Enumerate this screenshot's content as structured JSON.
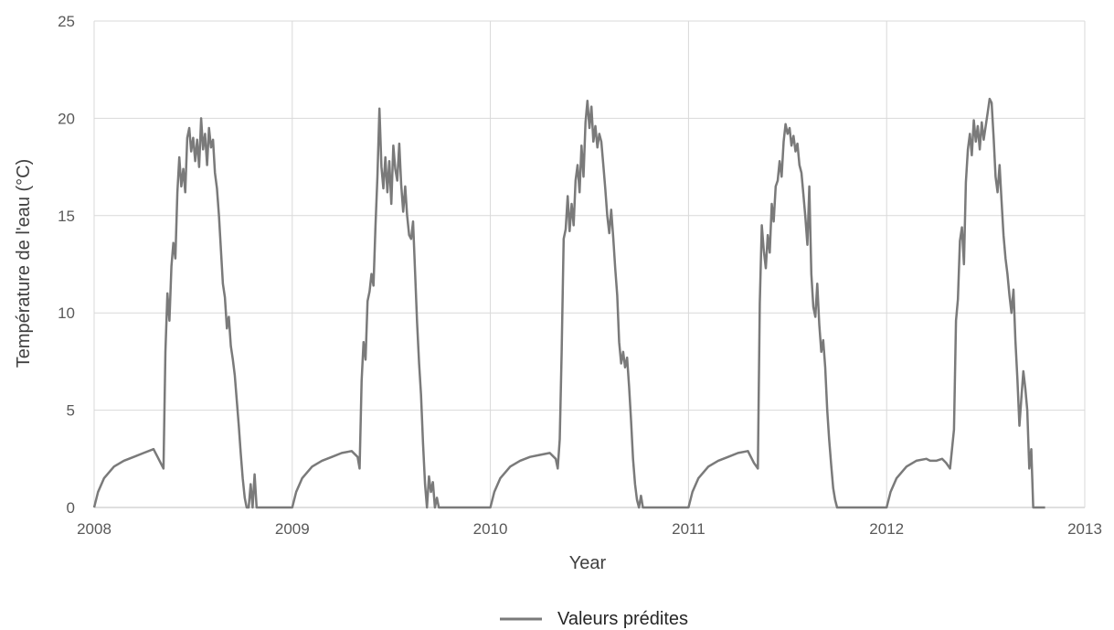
{
  "chart_data": {
    "type": "line",
    "title": "",
    "xlabel": "Year",
    "ylabel": "Température de l'eau (°C)",
    "xlim": [
      2008,
      2013
    ],
    "ylim": [
      0,
      25
    ],
    "x_ticks": [
      "2008",
      "2009",
      "2010",
      "2011",
      "2012",
      "2013"
    ],
    "y_ticks": [
      "0",
      "5",
      "10",
      "15",
      "20",
      "25"
    ],
    "grid": true,
    "legend_position": "bottom-center",
    "line_color": "#7a7a7a",
    "grid_color": "#d9d9d9",
    "series": [
      {
        "name": "Valeurs prédites",
        "x": [
          2008.0,
          2008.02,
          2008.05,
          2008.1,
          2008.15,
          2008.2,
          2008.25,
          2008.3,
          2008.32,
          2008.35,
          2008.36,
          2008.37,
          2008.38,
          2008.39,
          2008.4,
          2008.41,
          2008.42,
          2008.43,
          2008.44,
          2008.45,
          2008.46,
          2008.47,
          2008.48,
          2008.49,
          2008.5,
          2008.51,
          2008.52,
          2008.53,
          2008.54,
          2008.55,
          2008.56,
          2008.57,
          2008.58,
          2008.59,
          2008.6,
          2008.61,
          2008.62,
          2008.63,
          2008.64,
          2008.65,
          2008.66,
          2008.67,
          2008.68,
          2008.69,
          2008.7,
          2008.71,
          2008.72,
          2008.73,
          2008.74,
          2008.75,
          2008.76,
          2008.77,
          2008.78,
          2008.79,
          2008.8,
          2008.81,
          2008.82,
          2008.83,
          2008.84,
          2008.85,
          2008.86,
          2008.87,
          2008.88,
          2008.9,
          2009.0,
          2009.02,
          2009.05,
          2009.1,
          2009.15,
          2009.2,
          2009.25,
          2009.3,
          2009.33,
          2009.34,
          2009.35,
          2009.36,
          2009.37,
          2009.38,
          2009.39,
          2009.4,
          2009.41,
          2009.42,
          2009.43,
          2009.44,
          2009.45,
          2009.46,
          2009.47,
          2009.48,
          2009.49,
          2009.5,
          2009.51,
          2009.52,
          2009.53,
          2009.54,
          2009.55,
          2009.56,
          2009.57,
          2009.58,
          2009.59,
          2009.6,
          2009.61,
          2009.62,
          2009.63,
          2009.64,
          2009.65,
          2009.66,
          2009.67,
          2009.68,
          2009.69,
          2009.7,
          2009.71,
          2009.72,
          2009.73,
          2009.74,
          2009.75,
          2009.76,
          2009.77,
          2009.78,
          2009.79,
          2009.8,
          2009.81,
          2009.82,
          2009.83,
          2009.85,
          2009.9,
          2010.0,
          2010.02,
          2010.05,
          2010.1,
          2010.15,
          2010.2,
          2010.25,
          2010.3,
          2010.33,
          2010.34,
          2010.35,
          2010.36,
          2010.37,
          2010.38,
          2010.39,
          2010.4,
          2010.41,
          2010.42,
          2010.43,
          2010.44,
          2010.45,
          2010.46,
          2010.47,
          2010.48,
          2010.49,
          2010.5,
          2010.51,
          2010.52,
          2010.53,
          2010.54,
          2010.55,
          2010.56,
          2010.57,
          2010.58,
          2010.59,
          2010.6,
          2010.61,
          2010.62,
          2010.63,
          2010.64,
          2010.65,
          2010.66,
          2010.67,
          2010.68,
          2010.69,
          2010.7,
          2010.71,
          2010.72,
          2010.73,
          2010.74,
          2010.75,
          2010.76,
          2010.77,
          2010.78,
          2010.79,
          2010.8,
          2010.81,
          2010.82,
          2010.83,
          2010.84,
          2010.86,
          2010.9,
          2011.0,
          2011.02,
          2011.05,
          2011.1,
          2011.15,
          2011.2,
          2011.25,
          2011.3,
          2011.33,
          2011.35,
          2011.36,
          2011.37,
          2011.38,
          2011.39,
          2011.4,
          2011.41,
          2011.42,
          2011.43,
          2011.44,
          2011.45,
          2011.46,
          2011.47,
          2011.48,
          2011.49,
          2011.5,
          2011.51,
          2011.52,
          2011.53,
          2011.54,
          2011.55,
          2011.56,
          2011.57,
          2011.58,
          2011.59,
          2011.6,
          2011.61,
          2011.62,
          2011.63,
          2011.64,
          2011.65,
          2011.66,
          2011.67,
          2011.68,
          2011.69,
          2011.7,
          2011.71,
          2011.72,
          2011.73,
          2011.74,
          2011.75,
          2011.76,
          2011.77,
          2011.78,
          2011.79,
          2011.8,
          2011.81,
          2011.82,
          2011.83,
          2011.84,
          2011.85,
          2011.86,
          2011.87,
          2011.88,
          2011.9,
          2012.0,
          2012.02,
          2012.05,
          2012.1,
          2012.15,
          2012.2,
          2012.22,
          2012.25,
          2012.28,
          2012.3,
          2012.32,
          2012.34,
          2012.35,
          2012.36,
          2012.37,
          2012.38,
          2012.39,
          2012.4,
          2012.41,
          2012.42,
          2012.43,
          2012.44,
          2012.45,
          2012.46,
          2012.47,
          2012.48,
          2012.49,
          2012.5,
          2012.51,
          2012.52,
          2012.53,
          2012.54,
          2012.55,
          2012.56,
          2012.57,
          2012.58,
          2012.59,
          2012.6,
          2012.61,
          2012.62,
          2012.63,
          2012.64,
          2012.65,
          2012.66,
          2012.67,
          2012.68,
          2012.69,
          2012.7,
          2012.71,
          2012.72,
          2012.73,
          2012.74,
          2012.75,
          2012.76,
          2012.77,
          2012.78,
          2012.79,
          2012.8
        ],
        "y": [
          0.0,
          0.8,
          1.5,
          2.1,
          2.4,
          2.6,
          2.8,
          3.0,
          2.6,
          2.0,
          8.0,
          11.0,
          9.6,
          12.4,
          13.6,
          12.8,
          16.2,
          18.0,
          16.5,
          17.4,
          16.2,
          19.0,
          19.5,
          18.3,
          19.0,
          17.8,
          18.9,
          17.5,
          20.0,
          18.4,
          19.2,
          17.6,
          19.5,
          18.5,
          18.9,
          17.2,
          16.4,
          15.0,
          13.2,
          11.5,
          10.8,
          9.2,
          9.8,
          8.3,
          7.6,
          6.8,
          5.5,
          4.2,
          2.8,
          1.5,
          0.5,
          0.0,
          0.0,
          1.2,
          0.0,
          1.7,
          0.0,
          0.0,
          0.0,
          0.0,
          0.0,
          0.0,
          0.0,
          0.0,
          0.0,
          0.8,
          1.5,
          2.1,
          2.4,
          2.6,
          2.8,
          2.9,
          2.6,
          2.0,
          6.5,
          8.5,
          7.6,
          10.6,
          11.1,
          12.0,
          11.4,
          14.5,
          17.0,
          20.5,
          17.5,
          16.4,
          18.0,
          16.2,
          17.8,
          15.6,
          18.6,
          17.4,
          16.8,
          18.7,
          16.6,
          15.2,
          16.5,
          15.0,
          14.0,
          13.8,
          14.7,
          12.1,
          9.5,
          7.4,
          5.8,
          3.3,
          1.2,
          0.0,
          1.6,
          0.8,
          1.3,
          0.0,
          0.5,
          0.0,
          0.0,
          0.0,
          0.0,
          0.0,
          0.0,
          0.0,
          0.0,
          0.0,
          0.0,
          0.0,
          0.0,
          0.0,
          0.8,
          1.5,
          2.1,
          2.4,
          2.6,
          2.7,
          2.8,
          2.5,
          2.0,
          3.5,
          8.0,
          13.8,
          14.3,
          16.0,
          14.2,
          15.6,
          14.5,
          16.8,
          17.6,
          16.2,
          18.6,
          17.0,
          19.8,
          20.9,
          19.5,
          20.6,
          18.8,
          19.6,
          18.5,
          19.2,
          18.8,
          17.6,
          16.4,
          15.0,
          14.1,
          15.3,
          13.9,
          12.3,
          10.9,
          8.5,
          7.4,
          8.0,
          7.2,
          7.7,
          6.2,
          4.5,
          2.5,
          1.2,
          0.4,
          0.0,
          0.6,
          0.0,
          0.0,
          0.0,
          0.0,
          0.0,
          0.0,
          0.0,
          0.0,
          0.0,
          0.0,
          0.0,
          0.8,
          1.5,
          2.1,
          2.4,
          2.6,
          2.8,
          2.9,
          2.3,
          2.0,
          10.5,
          14.5,
          13.2,
          12.3,
          14.0,
          13.1,
          15.6,
          14.7,
          16.5,
          16.8,
          17.8,
          17.0,
          18.8,
          19.7,
          19.2,
          19.5,
          18.6,
          19.1,
          18.3,
          18.7,
          17.6,
          17.2,
          16.1,
          14.9,
          13.5,
          16.5,
          12.0,
          10.3,
          9.8,
          11.5,
          9.4,
          8.0,
          8.6,
          7.2,
          5.0,
          3.5,
          2.2,
          1.0,
          0.4,
          0.0,
          0.0,
          0.0,
          0.0,
          0.0,
          0.0,
          0.0,
          0.0,
          0.0,
          0.0,
          0.0,
          0.0,
          0.0,
          0.0,
          0.0,
          0.0,
          0.8,
          1.5,
          2.1,
          2.4,
          2.5,
          2.4,
          2.4,
          2.5,
          2.3,
          2.0,
          4.0,
          9.6,
          10.7,
          13.7,
          14.4,
          12.5,
          16.7,
          18.4,
          19.2,
          18.1,
          19.9,
          18.8,
          19.6,
          18.4,
          19.8,
          18.9,
          19.6,
          20.3,
          21.0,
          20.8,
          19.0,
          17.0,
          16.2,
          17.6,
          15.8,
          14.0,
          12.8,
          12.0,
          10.9,
          10.0,
          11.2,
          8.6,
          6.6,
          4.2,
          5.6,
          7.0,
          6.1,
          5.0,
          2.0,
          3.0,
          0.0,
          0.0,
          0.0,
          0.0,
          0.0,
          0.0,
          0.0
        ]
      }
    ]
  }
}
